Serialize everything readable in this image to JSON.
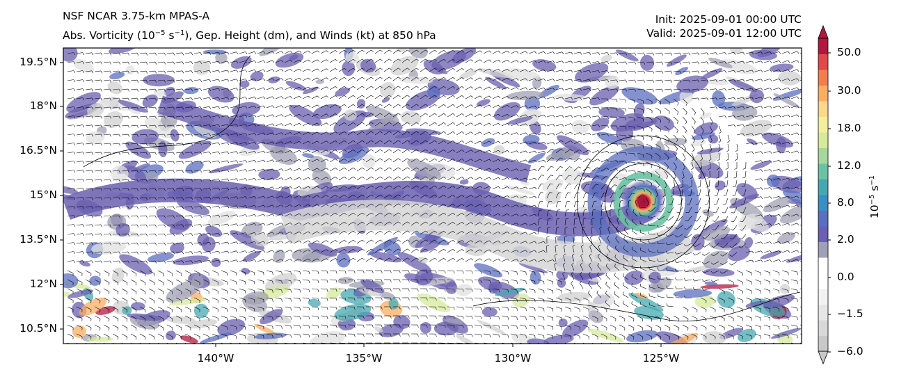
{
  "header": {
    "left_line1": "NSF NCAR 3.75-km MPAS-A",
    "left_line2_prefix": "Abs. Vorticity (10",
    "left_line2_exp1": "−5",
    "left_line2_mid": " s",
    "left_line2_exp2": "−1",
    "left_line2_suffix": "), Gep. Height (dm), and Winds (kt) at 850 hPa",
    "right_line1": "Init: 2025-09-01 00:00 UTC",
    "right_line2": "Valid: 2025-09-01 12:00 UTC"
  },
  "map": {
    "lat_labels": [
      "19.5°N",
      "18°N",
      "16.5°N",
      "15°N",
      "13.5°N",
      "12°N",
      "10.5°N"
    ],
    "lon_labels": [
      "140°W",
      "135°W",
      "130°W",
      "125°W"
    ],
    "storm_center": {
      "lon": -125.6,
      "lat": 14.8
    }
  },
  "colorbar": {
    "tick_labels": [
      "50.0",
      "30.0",
      "18.0",
      "12.0",
      "8.0",
      "2.0",
      "0.0",
      "−1.5",
      "−6.0"
    ],
    "unit_base": "10",
    "unit_exp1": "−5",
    "unit_mid": " s",
    "unit_exp2": "−1",
    "colors": [
      "#c8c8c8",
      "#d8d8d8",
      "#e6e6e6",
      "#f2f2f2",
      "#ffffff",
      "#ffffff",
      "#a0a0b4",
      "#6a5fb0",
      "#5b6fc0",
      "#3a8fc0",
      "#45a8b0",
      "#6cc2a4",
      "#a6d79c",
      "#d6ea9b",
      "#f2efa0",
      "#fcd98a",
      "#f9ae62",
      "#f47c4d",
      "#e2474b",
      "#b2183e"
    ]
  }
}
